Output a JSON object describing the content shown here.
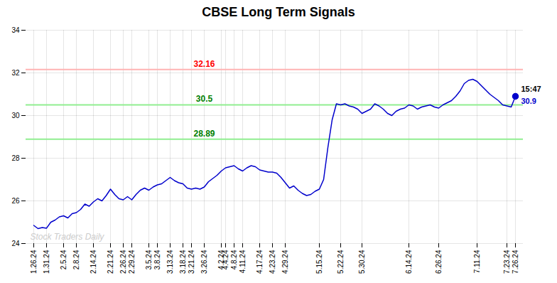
{
  "chart_data": {
    "type": "line",
    "title": "CBSE Long Term Signals",
    "categories": [
      "1.26.24",
      null,
      null,
      "1.31.24",
      null,
      null,
      null,
      "2.5.24",
      null,
      null,
      "2.8.24",
      null,
      null,
      null,
      "2.14.24",
      null,
      null,
      null,
      "2.21.24",
      null,
      null,
      "2.26.24",
      null,
      "2.29.24",
      null,
      null,
      null,
      "3.5.24",
      null,
      "3.8.24",
      null,
      null,
      "3.13.24",
      null,
      null,
      "3.18.24",
      null,
      "3.21.24",
      null,
      null,
      "3.26.24",
      null,
      null,
      null,
      "4.2.24",
      "4.4.24",
      null,
      "4.8.24",
      null,
      "4.11.24",
      null,
      null,
      null,
      "4.17.24",
      null,
      null,
      "4.23.24",
      null,
      null,
      "4.29.24",
      null,
      null,
      null,
      null,
      null,
      null,
      null,
      "5.15.24",
      null,
      null,
      null,
      null,
      "5.22.24",
      null,
      null,
      null,
      null,
      "5.30.24",
      null,
      null,
      null,
      null,
      null,
      null,
      null,
      null,
      null,
      null,
      "6.14.24",
      null,
      null,
      null,
      null,
      null,
      null,
      "6.26.24",
      null,
      null,
      null,
      null,
      null,
      null,
      null,
      null,
      "7.11.24",
      null,
      null,
      null,
      null,
      null,
      null,
      "7.23.24",
      null,
      "7.26.24"
    ],
    "series": [
      {
        "color": "#0000cc",
        "values": [
          24.85,
          24.7,
          24.75,
          24.72,
          25.0,
          25.1,
          25.25,
          25.3,
          25.2,
          25.4,
          25.45,
          25.6,
          25.85,
          25.75,
          25.95,
          26.1,
          26.0,
          26.25,
          26.55,
          26.3,
          26.1,
          26.05,
          26.2,
          26.05,
          26.3,
          26.5,
          26.6,
          26.5,
          26.65,
          26.75,
          26.8,
          26.95,
          27.1,
          26.95,
          26.85,
          26.8,
          26.6,
          26.55,
          26.6,
          26.55,
          26.65,
          26.9,
          27.05,
          27.2,
          27.4,
          27.55,
          27.6,
          27.65,
          27.5,
          27.4,
          27.55,
          27.65,
          27.6,
          27.45,
          27.4,
          27.35,
          27.35,
          27.3,
          27.1,
          26.85,
          26.6,
          26.7,
          26.5,
          26.35,
          26.25,
          26.3,
          26.45,
          26.55,
          27.0,
          28.5,
          29.8,
          30.55,
          30.5,
          30.55,
          30.45,
          30.4,
          30.3,
          30.1,
          30.2,
          30.3,
          30.55,
          30.45,
          30.3,
          30.1,
          30.0,
          30.2,
          30.3,
          30.35,
          30.5,
          30.45,
          30.3,
          30.4,
          30.45,
          30.5,
          30.4,
          30.35,
          30.5,
          30.6,
          30.7,
          30.9,
          31.15,
          31.5,
          31.65,
          31.7,
          31.6,
          31.4,
          31.2,
          31.0,
          30.85,
          30.7,
          30.5,
          30.45,
          30.4,
          30.9
        ]
      }
    ],
    "ylim": [
      24,
      34
    ],
    "yticks": [
      24,
      26,
      28,
      30,
      32,
      34
    ],
    "grid": true,
    "hlines": [
      {
        "value": 32.16,
        "label": "32.16",
        "color": "#ffb3b3",
        "label_color": "red"
      },
      {
        "value": 30.5,
        "label": "30.5",
        "color": "#90ee90",
        "label_color": "green"
      },
      {
        "value": 28.89,
        "label": "28.89",
        "color": "#90ee90",
        "label_color": "green"
      }
    ],
    "end_label": {
      "time": "15:47",
      "time_color": "#000000",
      "value": 30.9,
      "label": "30.9",
      "color": "#0000cc",
      "marker": "circle"
    },
    "watermark": {
      "text": "Stock Traders Daily",
      "color": "#cccccc"
    }
  }
}
